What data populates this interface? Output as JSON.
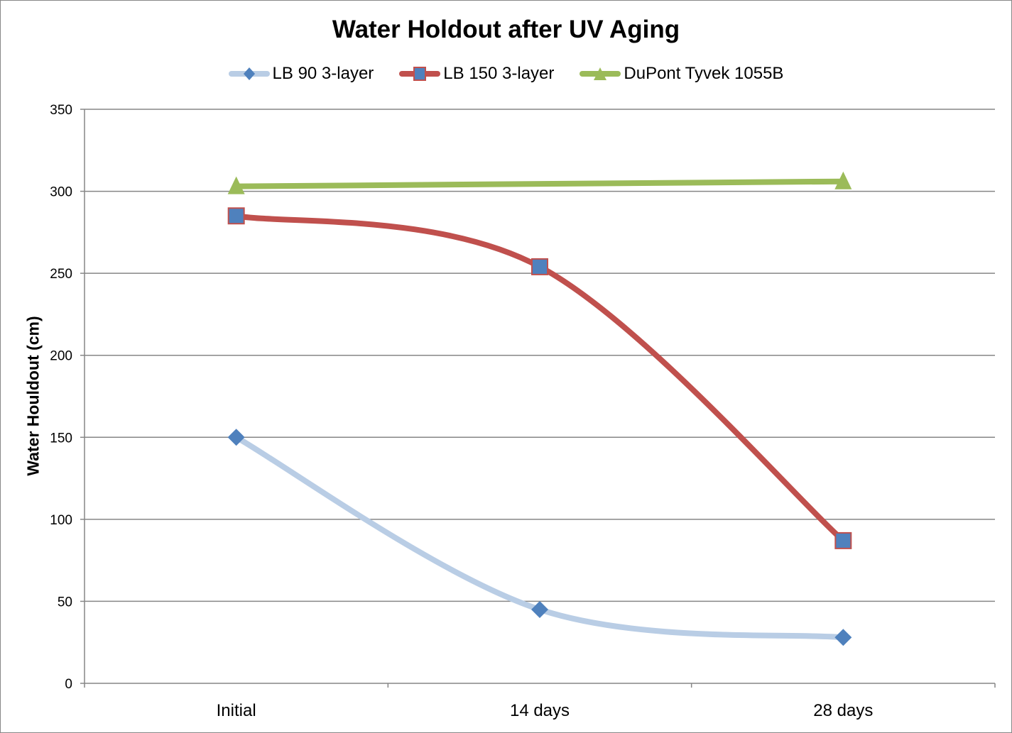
{
  "chart_data": {
    "type": "line",
    "title": "Water Holdout after UV Aging",
    "xlabel": "",
    "ylabel": "Water Houldout (cm)",
    "categories": [
      "Initial",
      "14 days",
      "28 days"
    ],
    "ylim": [
      0,
      350
    ],
    "yticks": [
      0,
      50,
      100,
      150,
      200,
      250,
      300,
      350
    ],
    "grid": true,
    "legend": "top",
    "smooth": true,
    "series": [
      {
        "name": "LB 90 3-layer",
        "values": [
          150,
          45,
          28
        ],
        "line_color": "#b9cde5",
        "marker": "diamond",
        "marker_color": "#4f81bd"
      },
      {
        "name": "LB 150 3-layer",
        "values": [
          285,
          254,
          87
        ],
        "line_color": "#c0504d",
        "marker": "square",
        "marker_color": "#4f81bd"
      },
      {
        "name": "DuPont Tyvek 1055B",
        "values": [
          303,
          null,
          306
        ],
        "line_color": "#9bbb59",
        "marker": "triangle",
        "marker_color": "#9bbb59"
      }
    ]
  }
}
